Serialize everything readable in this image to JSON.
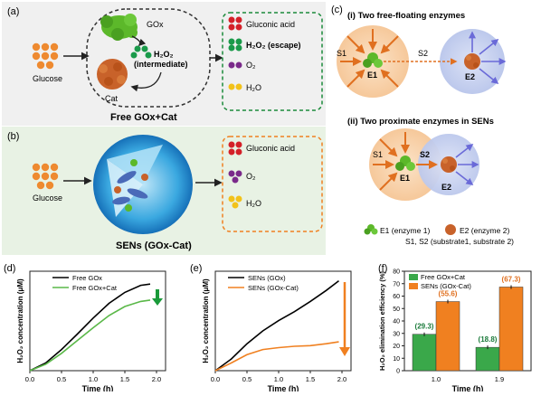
{
  "panels": {
    "a": {
      "label": "(a)",
      "glucose": "Glucose",
      "gox": "GOx",
      "h2o2": "H₂O₂",
      "intermediate": "(intermediate)",
      "cat": "Cat",
      "products": [
        "Gluconic acid",
        "H₂O₂ (escape)",
        "O₂",
        "H₂O"
      ],
      "caption": "Free GOx+Cat"
    },
    "b": {
      "label": "(b)",
      "glucose": "Glucose",
      "products": [
        "Gluconic acid",
        "O₂",
        "H₂O"
      ],
      "caption": "SENs (GOx-Cat)"
    },
    "c": {
      "label": "(c)",
      "title_i": "(i) Two free-floating enzymes",
      "title_ii": "(ii) Two proximate enzymes in SENs",
      "s1": "S1",
      "s2": "S2",
      "e1": "E1",
      "e2": "E2",
      "legend_e1": "E1 (enzyme 1)",
      "legend_e2": "E2 (enzyme 2)",
      "legend_s": "S1, S2 (substrate1, substrate 2)"
    },
    "colors": {
      "panel_a_bg": "#f0f0f0",
      "panel_b_bg": "#e8f2e4",
      "gluconic": "#d42028",
      "h2o2": "#1a9a4a",
      "o2": "#7a2a8a",
      "h2o": "#f2c21a",
      "glucose": "#ee8a30",
      "gox": "#5cb82a",
      "cat": "#c8622a",
      "line_black": "#000000",
      "line_green": "#5ab848",
      "line_orange": "#f08020"
    }
  },
  "chart_data": [
    {
      "panel": "(d)",
      "type": "line",
      "xlabel": "Time (h)",
      "ylabel": "H₂O₂ concentration (μM)",
      "xlim": [
        0,
        2.0
      ],
      "xticks": [
        "0.0",
        "0.5",
        "1.0",
        "1.5",
        "2.0"
      ],
      "series": [
        {
          "name": "Free GOx",
          "x": [
            0,
            0.25,
            0.5,
            0.75,
            1.0,
            1.25,
            1.5,
            1.75,
            1.9
          ],
          "y": [
            0,
            0.12,
            0.33,
            0.57,
            0.82,
            1.05,
            1.22,
            1.33,
            1.35
          ]
        },
        {
          "name": "Free GOx+Cat",
          "x": [
            0,
            0.25,
            0.5,
            0.75,
            1.0,
            1.25,
            1.5,
            1.75,
            1.9
          ],
          "y": [
            0,
            0.1,
            0.27,
            0.47,
            0.67,
            0.86,
            1.0,
            1.08,
            1.1
          ]
        }
      ]
    },
    {
      "panel": "(e)",
      "type": "line",
      "xlabel": "Time (h)",
      "ylabel": "H₂O₂ concentration (μM)",
      "xlim": [
        0,
        2.0
      ],
      "xticks": [
        "0.0",
        "0.5",
        "1.0",
        "1.5",
        "2.0"
      ],
      "series": [
        {
          "name": "SENs (GOx)",
          "x": [
            0,
            0.25,
            0.5,
            0.75,
            1.0,
            1.25,
            1.5,
            1.75,
            1.95
          ],
          "y": [
            0,
            0.18,
            0.42,
            0.62,
            0.78,
            0.92,
            1.08,
            1.25,
            1.4
          ]
        },
        {
          "name": "SENs (GOx-Cat)",
          "x": [
            0,
            0.25,
            0.5,
            0.75,
            1.0,
            1.25,
            1.5,
            1.75,
            1.95
          ],
          "y": [
            0,
            0.12,
            0.25,
            0.33,
            0.36,
            0.38,
            0.39,
            0.42,
            0.45
          ]
        }
      ]
    },
    {
      "panel": "(f)",
      "type": "bar",
      "xlabel": "Time (h)",
      "ylabel": "H₂O₂ elimination efficiency (%)",
      "ylim": [
        0,
        80
      ],
      "yticks": [
        "0",
        "10",
        "20",
        "30",
        "40",
        "50",
        "60",
        "70",
        "80"
      ],
      "categories": [
        "1.0",
        "1.9"
      ],
      "series": [
        {
          "name": "Free GOx+Cat",
          "values": [
            29.3,
            18.8
          ],
          "labels": [
            "(29.3)",
            "(18.8)"
          ]
        },
        {
          "name": "SENs (GOx-Cat)",
          "values": [
            55.6,
            67.3
          ],
          "labels": [
            "(55.6)",
            "(67.3)"
          ]
        }
      ]
    }
  ]
}
